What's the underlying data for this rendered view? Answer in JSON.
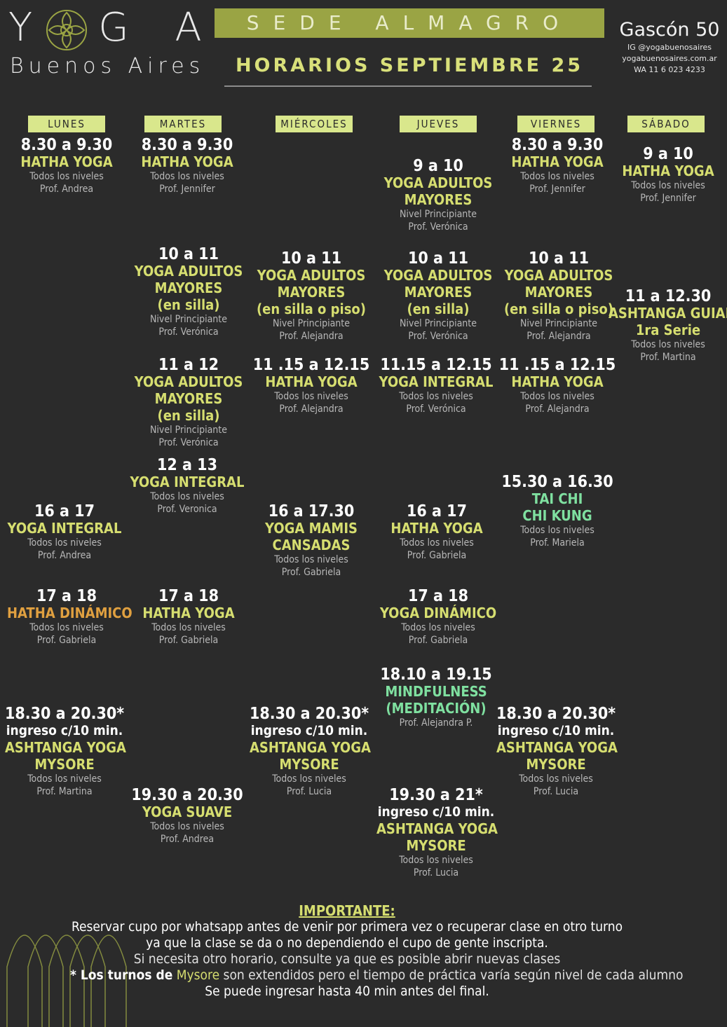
{
  "header": {
    "logo_left": "Y",
    "logo_right": "G A",
    "logo_sub": "Buenos Aires",
    "sede": "SEDE ALMAGRO",
    "horarios": "HORARIOS SEPTIEMBRE 25",
    "address": "Gascón 50",
    "ig": "IG @yogabuenosaires",
    "web": "yogabuenosaires.com.ar",
    "wa": "WA 11 6 023 4233"
  },
  "days": [
    "LUNES",
    "MARTES",
    "MIÉRCOLES",
    "JUEVES",
    "VIERNES",
    "SÁBADO"
  ],
  "classes": {
    "lun_830": {
      "time": "8.30 a 9.30",
      "name": "HATHA YOGA",
      "level": "Todos los niveles",
      "prof": "Prof. Andrea"
    },
    "mar_830": {
      "time": "8.30 a 9.30",
      "name": "HATHA YOGA",
      "level": "Todos los niveles",
      "prof": "Prof. Jennifer"
    },
    "jue_9": {
      "time": "9 a 10",
      "name1": "YOGA ADULTOS",
      "name2": "MAYORES",
      "level": "Nivel Principiante",
      "prof": "Prof. Verónica"
    },
    "vie_830": {
      "time": "8.30 a 9.30",
      "name": "HATHA YOGA",
      "level": "Todos los niveles",
      "prof": "Prof. Jennifer"
    },
    "sab_9": {
      "time": "9 a 10",
      "name": "HATHA YOGA",
      "level": "Todos los niveles",
      "prof": "Prof. Jennifer"
    },
    "mar_10": {
      "time": "10 a 11",
      "name1": "YOGA ADULTOS",
      "name2": "MAYORES",
      "name3": "(en silla)",
      "level": "Nivel Principiante",
      "prof": "Prof. Verónica"
    },
    "mie_10": {
      "time": "10 a 11",
      "name1": "YOGA ADULTOS",
      "name2": "MAYORES",
      "name3": "(en silla o piso)",
      "level": "Nivel Principiante",
      "prof": "Prof. Alejandra"
    },
    "jue_10": {
      "time": "10 a 11",
      "name1": "YOGA ADULTOS",
      "name2": "MAYORES",
      "name3": "(en silla)",
      "level": "Nivel Principiante",
      "prof": "Prof. Verónica"
    },
    "vie_10": {
      "time": "10 a 11",
      "name1": "YOGA ADULTOS",
      "name2": "MAYORES",
      "name3": "(en silla o piso)",
      "level": "Nivel Principiante",
      "prof": "Prof. Alejandra"
    },
    "sab_11": {
      "time": "11 a 12.30",
      "name1": "ASHTANGA GUIADA",
      "name2": "1ra Serie",
      "level": "Todos los niveles",
      "prof": "Prof. Martina"
    },
    "mar_11": {
      "time": "11 a 12",
      "name1": "YOGA ADULTOS",
      "name2": "MAYORES",
      "name3": "(en silla)",
      "level": "Nivel Principiante",
      "prof": "Prof. Verónica"
    },
    "mie_1115": {
      "time": "11 .15 a 12.15",
      "name": "HATHA YOGA",
      "level": "Todos los niveles",
      "prof": "Prof. Alejandra"
    },
    "jue_1115": {
      "time": "11.15 a 12.15",
      "name": "YOGA INTEGRAL",
      "level": "Todos los niveles",
      "prof": "Prof. Verónica"
    },
    "vie_1115": {
      "time": "11 .15 a 12.15",
      "name": "HATHA YOGA",
      "level": "Todos los niveles",
      "prof": "Prof. Alejandra"
    },
    "mar_12": {
      "time": "12 a 13",
      "name": "YOGA INTEGRAL",
      "level": "Todos los niveles",
      "prof": "Prof. Veronica"
    },
    "vie_1530": {
      "time": "15.30 a 16.30",
      "name1": "TAI CHI",
      "name2": "CHI KUNG",
      "level": "Todos los niveles",
      "prof": "Prof. Mariela"
    },
    "lun_16": {
      "time": "16 a 17",
      "name": "YOGA INTEGRAL",
      "level": "Todos los niveles",
      "prof": "Prof. Andrea"
    },
    "mie_16": {
      "time": "16 a 17.30",
      "name1": "YOGA MAMIS",
      "name2": "CANSADAS",
      "level": "Todos los niveles",
      "prof": "Prof. Gabriela"
    },
    "jue_16": {
      "time": "16 a 17",
      "name": "HATHA YOGA",
      "level": "Todos los niveles",
      "prof": "Prof. Gabriela"
    },
    "lun_17": {
      "time": "17 a 18",
      "name": "HATHA DINÁMICO",
      "level": "Todos los niveles",
      "prof": "Prof. Gabriela"
    },
    "mar_17": {
      "time": "17 a 18",
      "name": "HATHA YOGA",
      "level": "Todos los niveles",
      "prof": "Prof. Gabriela"
    },
    "jue_17": {
      "time": "17 a 18",
      "name": "YOGA DINÁMICO",
      "level": "Todos los niveles",
      "prof": "Prof. Gabriela"
    },
    "jue_1810": {
      "time": "18.10 a 19.15",
      "name1": "MINDFULNESS",
      "name2": "(MEDITACIÓN)",
      "prof": "Prof. Alejandra P."
    },
    "lun_1830": {
      "time": "18.30 a 20.30*",
      "ingreso": "ingreso c/10 min.",
      "name1": "ASHTANGA YOGA",
      "name2": "MYSORE",
      "level": "Todos los niveles",
      "prof": "Prof. Martina"
    },
    "mie_1830": {
      "time": "18.30 a 20.30*",
      "ingreso": "ingreso c/10 min.",
      "name1": "ASHTANGA YOGA",
      "name2": "MYSORE",
      "level": "Todos los niveles",
      "prof": "Prof. Lucia"
    },
    "vie_1830": {
      "time": "18.30 a 20.30*",
      "ingreso": "ingreso c/10 min.",
      "name1": "ASHTANGA YOGA",
      "name2": "MYSORE",
      "level": "Todos los niveles",
      "prof": "Prof. Lucia"
    },
    "mar_1930": {
      "time": "19.30 a 20.30",
      "name": "YOGA SUAVE",
      "level": "Todos los niveles",
      "prof": "Prof.  Andrea"
    },
    "jue_1930": {
      "time": "19.30 a 21*",
      "ingreso": "ingreso c/10 min.",
      "name1": "ASHTANGA YOGA",
      "name2": "MYSORE",
      "level": "Todos los niveles",
      "prof": "Prof. Lucia"
    }
  },
  "note": {
    "title": "IMPORTANTE:",
    "line1": "Reservar cupo por whatsapp antes de venir por primera vez o recuperar clase en otro turno",
    "line2": "ya que la clase se da o no dependiendo el cupo de gente inscripta.",
    "line3": "Si necesita otro horario, consulte ya que es posible abrir nuevas clases",
    "line4a": "* Los turnos de",
    "line4b": "Mysore",
    "line4c": "son extendidos pero el tiempo de práctica varía según nivel de cada alumno",
    "line5": "Se puede ingresar hasta 40 min antes del final."
  },
  "colors": {
    "background": "#2b2b2b",
    "accent": "#9aa444",
    "class_name": "#d6de70",
    "day_label": "#d9e78c"
  }
}
